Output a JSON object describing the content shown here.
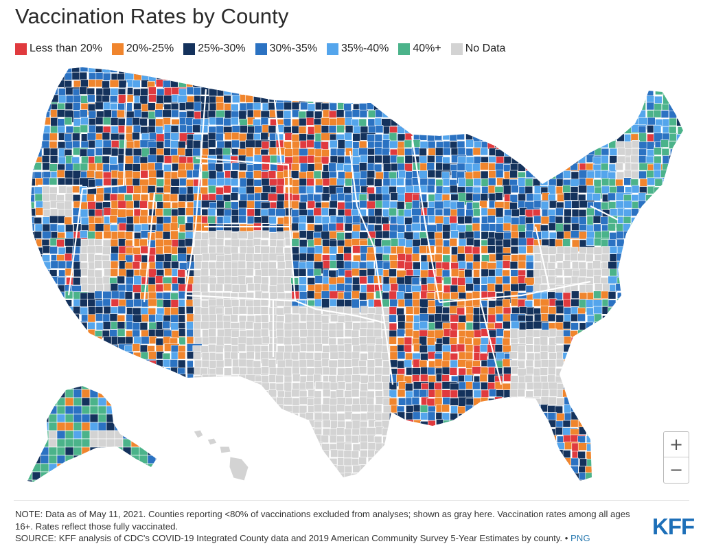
{
  "title": "Vaccination Rates by County",
  "legend": [
    {
      "label": "Less than 20%",
      "color": "#e03a3e"
    },
    {
      "label": "20%-25%",
      "color": "#f0852d"
    },
    {
      "label": "25%-30%",
      "color": "#14325c"
    },
    {
      "label": "30%-35%",
      "color": "#2b72c2"
    },
    {
      "label": "35%-40%",
      "color": "#54a5ec"
    },
    {
      "label": "40%+",
      "color": "#4bb38a"
    },
    {
      "label": "No Data",
      "color": "#d3d3d3"
    }
  ],
  "map": {
    "no_data_states": [
      "TX",
      "CO",
      "GA",
      "VA",
      "VT",
      "HI"
    ],
    "border_color": "#ffffff"
  },
  "controls": {
    "zoom_in": "+",
    "zoom_out": "−"
  },
  "note": "NOTE: Data as of May 11, 2021. Counties reporting <80% of vaccinations excluded from analyses; shown as gray here. Vaccination rates among all ages 16+. Rates reflect those fully vaccinated.",
  "source": "SOURCE: KFF analysis of CDC's COVID-19 Integrated County data and 2019 American Community Survey 5-Year Estimates by county. •",
  "png_link": "PNG",
  "logo": "KFF"
}
